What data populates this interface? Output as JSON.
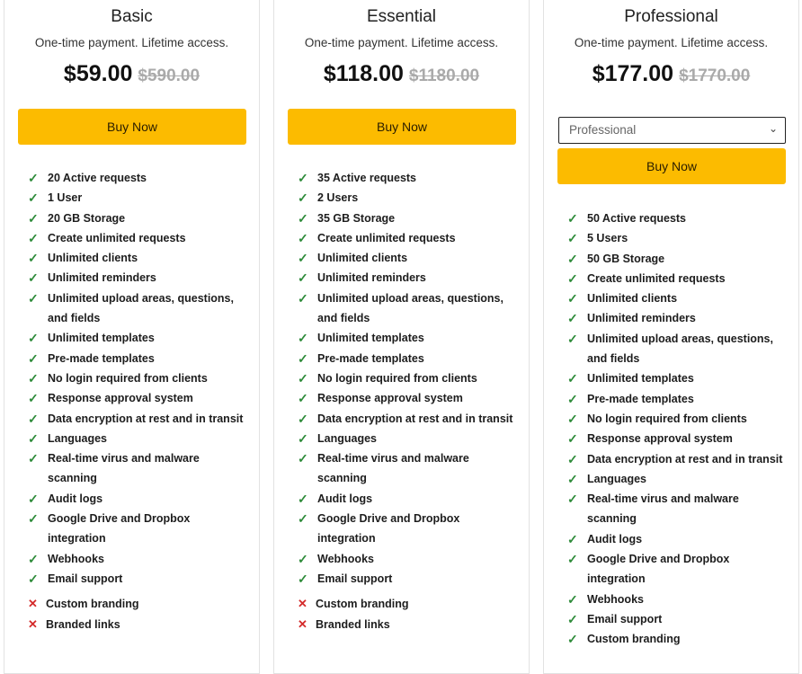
{
  "plans": [
    {
      "name": "Basic",
      "subtitle": "One-time payment. Lifetime access.",
      "price": "$59.00",
      "old_price": "$590.00",
      "buy_label": "Buy Now",
      "features": [
        {
          "text": "20 Active requests",
          "included": true
        },
        {
          "text": "1 User",
          "included": true
        },
        {
          "text": "20 GB Storage",
          "included": true
        },
        {
          "text": "Create unlimited requests",
          "included": true
        },
        {
          "text": "Unlimited clients",
          "included": true
        },
        {
          "text": "Unlimited reminders",
          "included": true
        },
        {
          "text": "Unlimited upload areas, questions, and fields",
          "included": true
        },
        {
          "text": "Unlimited templates",
          "included": true
        },
        {
          "text": "Pre-made templates",
          "included": true
        },
        {
          "text": "No login required from clients",
          "included": true
        },
        {
          "text": "Response approval system",
          "included": true
        },
        {
          "text": "Data encryption at rest and in transit",
          "included": true
        },
        {
          "text": "Languages",
          "included": true
        },
        {
          "text": "Real-time virus and malware scanning",
          "included": true
        },
        {
          "text": "Audit logs",
          "included": true
        },
        {
          "text": "Google Drive and Dropbox integration",
          "included": true
        },
        {
          "text": "Webhooks",
          "included": true
        },
        {
          "text": "Email support",
          "included": true
        },
        {
          "text": "Custom branding",
          "included": false
        },
        {
          "text": "Branded links",
          "included": false
        }
      ]
    },
    {
      "name": "Essential",
      "subtitle": "One-time payment. Lifetime access.",
      "price": "$118.00",
      "old_price": "$1180.00",
      "buy_label": "Buy Now",
      "features": [
        {
          "text": "35 Active requests",
          "included": true
        },
        {
          "text": "2 Users",
          "included": true
        },
        {
          "text": "35 GB Storage",
          "included": true
        },
        {
          "text": "Create unlimited requests",
          "included": true
        },
        {
          "text": "Unlimited clients",
          "included": true
        },
        {
          "text": "Unlimited reminders",
          "included": true
        },
        {
          "text": "Unlimited upload areas, questions, and fields",
          "included": true
        },
        {
          "text": "Unlimited templates",
          "included": true
        },
        {
          "text": "Pre-made templates",
          "included": true
        },
        {
          "text": "No login required from clients",
          "included": true
        },
        {
          "text": "Response approval system",
          "included": true
        },
        {
          "text": "Data encryption at rest and in transit",
          "included": true
        },
        {
          "text": "Languages",
          "included": true
        },
        {
          "text": "Real-time virus and malware scanning",
          "included": true
        },
        {
          "text": "Audit logs",
          "included": true
        },
        {
          "text": "Google Drive and Dropbox integration",
          "included": true
        },
        {
          "text": "Webhooks",
          "included": true
        },
        {
          "text": "Email support",
          "included": true
        },
        {
          "text": "Custom branding",
          "included": false
        },
        {
          "text": "Branded links",
          "included": false
        }
      ]
    },
    {
      "name": "Professional",
      "subtitle": "One-time payment. Lifetime access.",
      "price": "$177.00",
      "old_price": "$1770.00",
      "select_value": "Professional",
      "buy_label": "Buy Now",
      "features": [
        {
          "text": "50 Active requests",
          "included": true
        },
        {
          "text": "5 Users",
          "included": true
        },
        {
          "text": "50 GB Storage",
          "included": true
        },
        {
          "text": "Create unlimited requests",
          "included": true
        },
        {
          "text": "Unlimited clients",
          "included": true
        },
        {
          "text": "Unlimited reminders",
          "included": true
        },
        {
          "text": "Unlimited upload areas, questions, and fields",
          "included": true
        },
        {
          "text": "Unlimited templates",
          "included": true
        },
        {
          "text": "Pre-made templates",
          "included": true
        },
        {
          "text": "No login required from clients",
          "included": true
        },
        {
          "text": "Response approval system",
          "included": true
        },
        {
          "text": "Data encryption at rest and in transit",
          "included": true
        },
        {
          "text": "Languages",
          "included": true
        },
        {
          "text": "Real-time virus and malware scanning",
          "included": true
        },
        {
          "text": "Audit logs",
          "included": true
        },
        {
          "text": "Google Drive and Dropbox integration",
          "included": true
        },
        {
          "text": "Webhooks",
          "included": true
        },
        {
          "text": "Email support",
          "included": true
        },
        {
          "text": "Custom branding",
          "included": true
        }
      ]
    }
  ],
  "colors": {
    "button": "#fcbb00",
    "check": "#2e8b3a",
    "cross": "#d42b2b"
  },
  "icons": {
    "included": "check-icon",
    "excluded": "cross-icon",
    "select": "chevron-down-icon"
  }
}
